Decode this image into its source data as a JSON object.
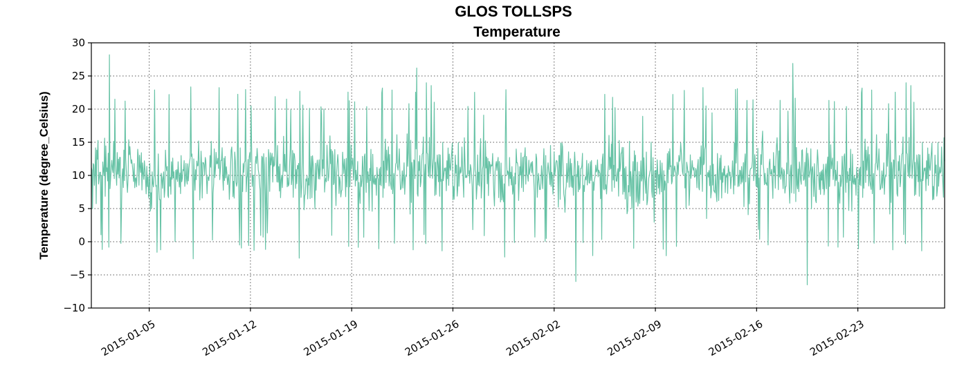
{
  "chart_data": {
    "type": "line",
    "title": "GLOS TOLLSPS",
    "subtitle": "Temperature",
    "xlabel": "",
    "ylabel": "Temperature (degree_Celsius)",
    "xlim": [
      "2015-01-01",
      "2015-03-01"
    ],
    "ylim": [
      -10,
      30
    ],
    "yticks": [
      -10,
      -5,
      0,
      5,
      10,
      15,
      20,
      25,
      30
    ],
    "xticks": [
      "2015-01-05",
      "2015-01-12",
      "2015-01-19",
      "2015-01-26",
      "2015-02-02",
      "2015-02-09",
      "2015-02-16",
      "2015-02-23"
    ],
    "grid": true,
    "series": [
      {
        "color": "#66c2a5",
        "sampling": "hourly",
        "summary": {
          "typical_range": [
            2,
            20
          ],
          "center": 10.5,
          "min": -6.5,
          "max": 28.2
        },
        "notable_points": [
          {
            "x": "2015-01-02 06:00",
            "y": 28.2
          },
          {
            "x": "2015-01-23 12:00",
            "y": 26.2
          },
          {
            "x": "2015-02-18 12:00",
            "y": 26.9
          },
          {
            "x": "2015-02-03 12:00",
            "y": -6.0
          },
          {
            "x": "2015-02-19 12:00",
            "y": -6.5
          }
        ]
      }
    ]
  }
}
